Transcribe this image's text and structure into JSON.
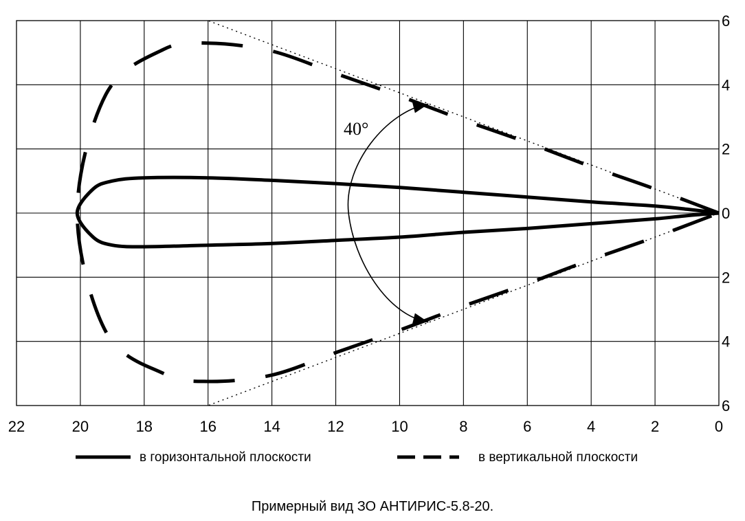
{
  "chart_data": {
    "type": "line",
    "x_ticks": [
      "22",
      "20",
      "18",
      "16",
      "14",
      "12",
      "10",
      "8",
      "6",
      "4",
      "2",
      "0"
    ],
    "y_ticks": [
      "6",
      "4",
      "2",
      "0",
      "2",
      "4",
      "6"
    ],
    "xlim": [
      22,
      0
    ],
    "ylim": [
      -6,
      6
    ],
    "grid": true,
    "legend_placement": "bottom",
    "angle_annotation": "40°",
    "series": [
      {
        "name": "в горизонтальной плоскости",
        "style": "solid",
        "x": [
          0,
          1,
          2,
          4,
          6,
          8,
          10,
          12,
          14,
          16,
          18,
          19,
          19.6,
          20.1,
          19.6,
          19,
          18,
          16,
          14,
          12,
          10,
          8,
          6,
          4,
          2,
          1,
          0
        ],
        "y": [
          0,
          0.12,
          0.22,
          0.35,
          0.5,
          0.65,
          0.8,
          0.92,
          1.02,
          1.1,
          1.1,
          1.0,
          0.75,
          0,
          -0.75,
          -1.0,
          -1.05,
          -1.0,
          -0.95,
          -0.85,
          -0.75,
          -0.6,
          -0.48,
          -0.33,
          -0.18,
          -0.08,
          0
        ]
      },
      {
        "name": "в вертикальной плоскости",
        "style": "dashed",
        "x": [
          0,
          2,
          4,
          6,
          8,
          10,
          12,
          14,
          16,
          17.4,
          19.2,
          20.1,
          19.2,
          17.4,
          16,
          14,
          12,
          10,
          8,
          6,
          4,
          2,
          0
        ],
        "y": [
          0,
          0.75,
          1.45,
          2.2,
          2.9,
          3.65,
          4.35,
          5.05,
          5.3,
          5.1,
          3.7,
          0,
          -3.7,
          -5.0,
          -5.25,
          -5.05,
          -4.35,
          -3.65,
          -2.9,
          -2.2,
          -1.45,
          -0.75,
          0
        ]
      }
    ]
  },
  "caption": "Примерный вид ЗО АНТИРИС-5.8-20.",
  "colors": {
    "line": "#000000",
    "grid": "#000000",
    "background": "#ffffff"
  }
}
